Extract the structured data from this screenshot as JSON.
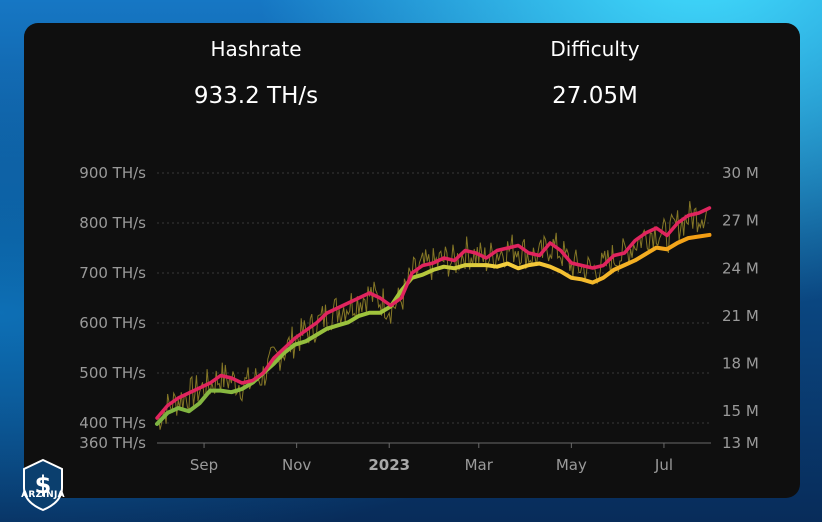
{
  "stats": {
    "hashrate_label": "Hashrate",
    "hashrate_value": "933.2 TH/s",
    "difficulty_label": "Difficulty",
    "difficulty_value": "27.05M"
  },
  "brand": {
    "logo_text": "ARZINJA"
  },
  "colors": {
    "hashrate_line": "#e0245e",
    "difficulty_line_start": "#7cb342",
    "difficulty_line_mid": "#f4d03f",
    "difficulty_line_end": "#f39c12",
    "raw_series": "#9a8a2a"
  },
  "chart_data": {
    "type": "line",
    "x_tick_labels": [
      "Sep",
      "Nov",
      "2023",
      "Mar",
      "May",
      "Jul"
    ],
    "x_tick_dates": [
      "2022-09-01",
      "2022-11-01",
      "2023-01-01",
      "2023-03-01",
      "2023-05-01",
      "2023-07-01"
    ],
    "y_left_ticks": [
      "900 TH/s",
      "800 TH/s",
      "700 TH/s",
      "600 TH/s",
      "500 TH/s",
      "400 TH/s",
      "360 TH/s"
    ],
    "y_left_tick_values": [
      900,
      800,
      700,
      600,
      500,
      400,
      360
    ],
    "y_right_ticks": [
      "30 M",
      "27 M",
      "24 M",
      "21 M",
      "18 M",
      "15 M",
      "13 M"
    ],
    "y_right_tick_values": [
      30,
      27,
      24,
      21,
      18,
      15,
      13
    ],
    "ylim_left": [
      360,
      900
    ],
    "ylim_right": [
      13,
      30
    ],
    "grid": true,
    "series": [
      {
        "unit": "TH/s",
        "axis": "left",
        "x": [
          "2022-08-01",
          "2022-08-08",
          "2022-08-15",
          "2022-08-22",
          "2022-08-29",
          "2022-09-05",
          "2022-09-12",
          "2022-09-19",
          "2022-09-26",
          "2022-10-03",
          "2022-10-10",
          "2022-10-17",
          "2022-10-24",
          "2022-10-31",
          "2022-11-07",
          "2022-11-14",
          "2022-11-21",
          "2022-11-28",
          "2022-12-05",
          "2022-12-12",
          "2022-12-19",
          "2022-12-26",
          "2023-01-02",
          "2023-01-09",
          "2023-01-16",
          "2023-01-23",
          "2023-01-30",
          "2023-02-06",
          "2023-02-13",
          "2023-02-20",
          "2023-02-27",
          "2023-03-06",
          "2023-03-13",
          "2023-03-20",
          "2023-03-27",
          "2023-04-03",
          "2023-04-10",
          "2023-04-17",
          "2023-04-24",
          "2023-05-01",
          "2023-05-08",
          "2023-05-15",
          "2023-05-22",
          "2023-05-29",
          "2023-06-05",
          "2023-06-12",
          "2023-06-19",
          "2023-06-26",
          "2023-07-03",
          "2023-07-10",
          "2023-07-17",
          "2023-07-24",
          "2023-07-31"
        ],
        "values": [
          410,
          435,
          450,
          460,
          470,
          480,
          495,
          490,
          480,
          485,
          500,
          530,
          550,
          570,
          585,
          600,
          620,
          630,
          640,
          650,
          660,
          650,
          635,
          650,
          700,
          715,
          720,
          730,
          725,
          745,
          740,
          730,
          745,
          750,
          755,
          740,
          735,
          760,
          745,
          720,
          715,
          710,
          715,
          735,
          740,
          765,
          780,
          790,
          775,
          800,
          815,
          820,
          830
        ]
      },
      {
        "unit": "M",
        "axis": "right",
        "x": [
          "2022-08-01",
          "2022-08-08",
          "2022-08-15",
          "2022-08-22",
          "2022-08-29",
          "2022-09-05",
          "2022-09-12",
          "2022-09-19",
          "2022-09-26",
          "2022-10-03",
          "2022-10-10",
          "2022-10-17",
          "2022-10-24",
          "2022-10-31",
          "2022-11-07",
          "2022-11-14",
          "2022-11-21",
          "2022-11-28",
          "2022-12-05",
          "2022-12-12",
          "2022-12-19",
          "2022-12-26",
          "2023-01-02",
          "2023-01-09",
          "2023-01-16",
          "2023-01-23",
          "2023-01-30",
          "2023-02-06",
          "2023-02-13",
          "2023-02-20",
          "2023-02-27",
          "2023-03-06",
          "2023-03-13",
          "2023-03-20",
          "2023-03-27",
          "2023-04-03",
          "2023-04-10",
          "2023-04-17",
          "2023-04-24",
          "2023-05-01",
          "2023-05-08",
          "2023-05-15",
          "2023-05-22",
          "2023-05-29",
          "2023-06-05",
          "2023-06-12",
          "2023-06-19",
          "2023-06-26",
          "2023-07-03",
          "2023-07-10",
          "2023-07-17",
          "2023-07-24",
          "2023-07-31"
        ],
        "values": [
          14.2,
          14.9,
          15.2,
          15.0,
          15.5,
          16.3,
          16.3,
          16.2,
          16.4,
          16.8,
          17.4,
          18.0,
          18.7,
          19.2,
          19.4,
          19.8,
          20.2,
          20.4,
          20.6,
          21.0,
          21.2,
          21.2,
          21.6,
          22.6,
          23.4,
          23.6,
          23.9,
          24.1,
          24.0,
          24.2,
          24.2,
          24.2,
          24.1,
          24.3,
          24.0,
          24.2,
          24.3,
          24.1,
          23.8,
          23.4,
          23.3,
          23.1,
          23.4,
          23.9,
          24.2,
          24.5,
          24.9,
          25.3,
          25.2,
          25.6,
          25.9,
          26.0,
          26.1
        ]
      }
    ]
  }
}
